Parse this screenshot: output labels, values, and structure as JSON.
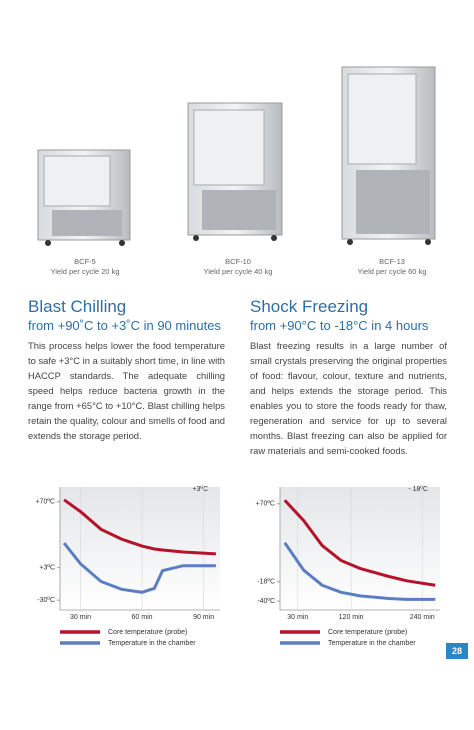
{
  "products": [
    {
      "model": "BCF-5",
      "yield": "Yield per cycle 20 kg"
    },
    {
      "model": "BCF-10",
      "yield": "Yield per cycle 40 kg"
    },
    {
      "model": "BCF-13",
      "yield": "Yield per cycle 60 kg"
    }
  ],
  "sections": [
    {
      "title": "Blast Chilling",
      "subtitle": "from +90˚C to +3˚C in 90 minutes",
      "body": "This process helps lower the food temperature to safe +3°C in a suitably short time, in line with HACCP standards. The adequate chilling speed helps reduce bacteria growth in the range from +65°C to +10°C. Blast chilling helps retain the quality, colour and smells of food and extends the storage period."
    },
    {
      "title": "Shock Freezing",
      "subtitle": "from +90°C to -18°C in 4 hours",
      "body": "Blast freezing results in a large number of small crystals preserving the original properties of food: flavour, colour, texture and nutrients, and helps extends the storage period. This enables you to store the foods ready for thaw, regeneration and service for up to several months. Blast freezing can also be applied for raw materials and semi-cooked foods."
    }
  ],
  "chart_data": [
    {
      "type": "line",
      "corner_label": "+3ºC",
      "x": [
        22,
        30,
        40,
        50,
        60,
        66,
        70,
        80,
        96
      ],
      "xlim": [
        20,
        98
      ],
      "xticks": [
        {
          "value": 30,
          "label": "30 min"
        },
        {
          "value": 60,
          "label": "60 min"
        },
        {
          "value": 90,
          "label": "90 min"
        }
      ],
      "ylim": [
        -40,
        85
      ],
      "yticks": [
        {
          "value": 70,
          "label": "+70ºC"
        },
        {
          "value": 3,
          "label": "+3ºC"
        },
        {
          "value": -30,
          "label": "-30ºC"
        }
      ],
      "series": [
        {
          "name": "Core temperature (probe)",
          "color": "#b5132b",
          "values": [
            72,
            60,
            42,
            32,
            25,
            22,
            21,
            19,
            17
          ]
        },
        {
          "name": "Temperature in the chamber",
          "color": "#5b7ec2",
          "values": [
            28,
            7,
            -11,
            -19,
            -22,
            -18,
            0,
            5,
            5
          ]
        }
      ]
    },
    {
      "type": "line",
      "corner_label": "- 18ºC",
      "x": [
        8,
        40,
        71,
        103,
        135,
        183,
        214,
        262
      ],
      "xlim": [
        0,
        270
      ],
      "xticks": [
        {
          "value": 30,
          "label": "30 min"
        },
        {
          "value": 120,
          "label": "120 min"
        },
        {
          "value": 240,
          "label": "240 min"
        }
      ],
      "ylim": [
        -50,
        89
      ],
      "yticks": [
        {
          "value": 70,
          "label": "+70ºC"
        },
        {
          "value": -18,
          "label": "-18ºC"
        },
        {
          "value": -40,
          "label": "-40ºC"
        }
      ],
      "series": [
        {
          "name": "Core temperature (probe)",
          "color": "#b5132b",
          "values": [
            74,
            51,
            23,
            6,
            -3,
            -12,
            -17,
            -22
          ]
        },
        {
          "name": "Temperature in the chamber",
          "color": "#5b7ec2",
          "values": [
            26,
            -5,
            -22,
            -30,
            -34,
            -37,
            -38,
            -38
          ]
        }
      ]
    }
  ],
  "page_number": "28"
}
